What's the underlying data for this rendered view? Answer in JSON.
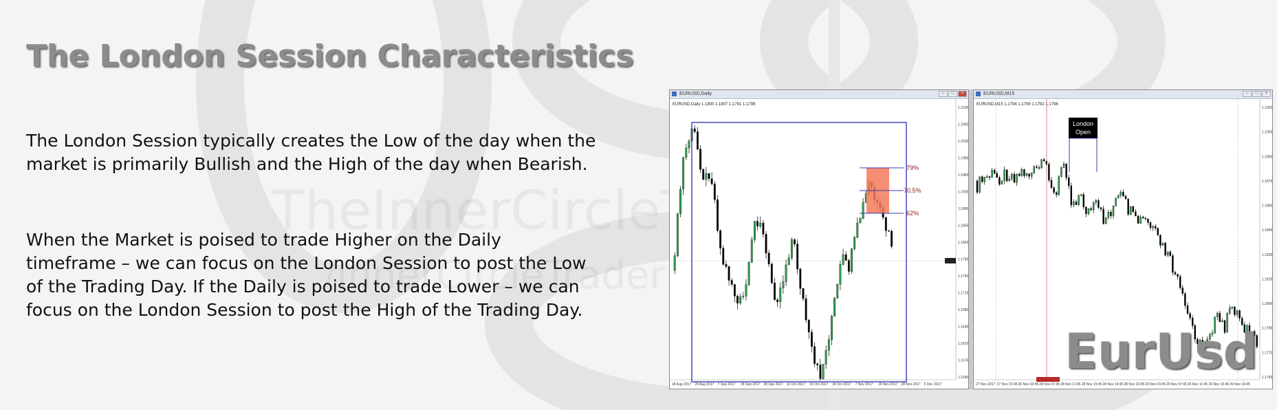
{
  "slide": {
    "title": "The London Session Characteristics",
    "paragraph1_line1": "The London Session typically creates the Low of the day when the",
    "paragraph1_line2": "market is primarily Bullish and the High of the day when Bearish.",
    "paragraph2_line1": "When the Market is poised to trade Higher on the Daily",
    "paragraph2_line2": "timeframe – we can focus on the London Session to post the Low",
    "paragraph2_line3": "of the Trading Day.  If the Daily is poised to trade Lower – we can",
    "paragraph2_line4": "focus on the London Session to post the High of the Trading Day.",
    "watermark_line1": "TheInnerCircleTrader.com",
    "watermark_line2": "/InnerCircleTrader",
    "pair_label": "EurUsd"
  },
  "daily_window": {
    "title": "EURUSD,Daily",
    "info": "EURUSD,Daily  1.1800 1.1807 1.1791 1.1798",
    "fib_levels": [
      "79%",
      "70.5%",
      "62%"
    ],
    "price_ticks": [
      "1.2100",
      "1.2065",
      "1.2030",
      "1.1995",
      "1.1960",
      "1.1925",
      "1.1890",
      "1.1855",
      "1.1820",
      "1.1785",
      "1.1750",
      "1.1715",
      "1.1680",
      "1.1645",
      "1.1610",
      "1.1575",
      "1.1540"
    ],
    "date_ticks": [
      "18 Aug 2017",
      "29 Aug 2017",
      "7 Sep 2017",
      "18 Sep 2017",
      "28 Sep 2017",
      "10 Oct 2017",
      "19 Oct 2017",
      "30 Oct 2017",
      "7 Nov 2017",
      "16 Nov 2017",
      "28 Nov 2017",
      "5 Dec 2017"
    ]
  },
  "intraday_window": {
    "title": "EURUSD,M15",
    "info": "EURUSD,M15  1.1794 1.1799 1.1792 1.1796",
    "session_label_line1": "London",
    "session_label_line2": "Open",
    "price_ticks": [
      "1.1920",
      "1.1905",
      "1.1890",
      "1.1875",
      "1.1860",
      "1.1845",
      "1.1830",
      "1.1815",
      "1.1800",
      "1.1785",
      "1.1770",
      "1.1755"
    ],
    "time_ticks": [
      "27 Nov 2017",
      "27 Nov 23:45",
      "28 Nov 03:45",
      "28 Nov 07:45",
      "28 Nov 11:45",
      "28 Nov 15:45",
      "28 Nov 19:45",
      "28 Nov 23:45",
      "29 Nov 03:45",
      "29 Nov 07:45",
      "29 Nov 11:45",
      "29 Nov 15:45",
      "29 Nov 19:45"
    ]
  },
  "colors": {
    "bull_candle": "#2fa84f",
    "bear_candle": "#000000",
    "range_box": "#3a3ab5",
    "fib_zone": "#f47a5c",
    "fib_text": "#8b1a1a",
    "title_gray": "#8c8c8c"
  }
}
